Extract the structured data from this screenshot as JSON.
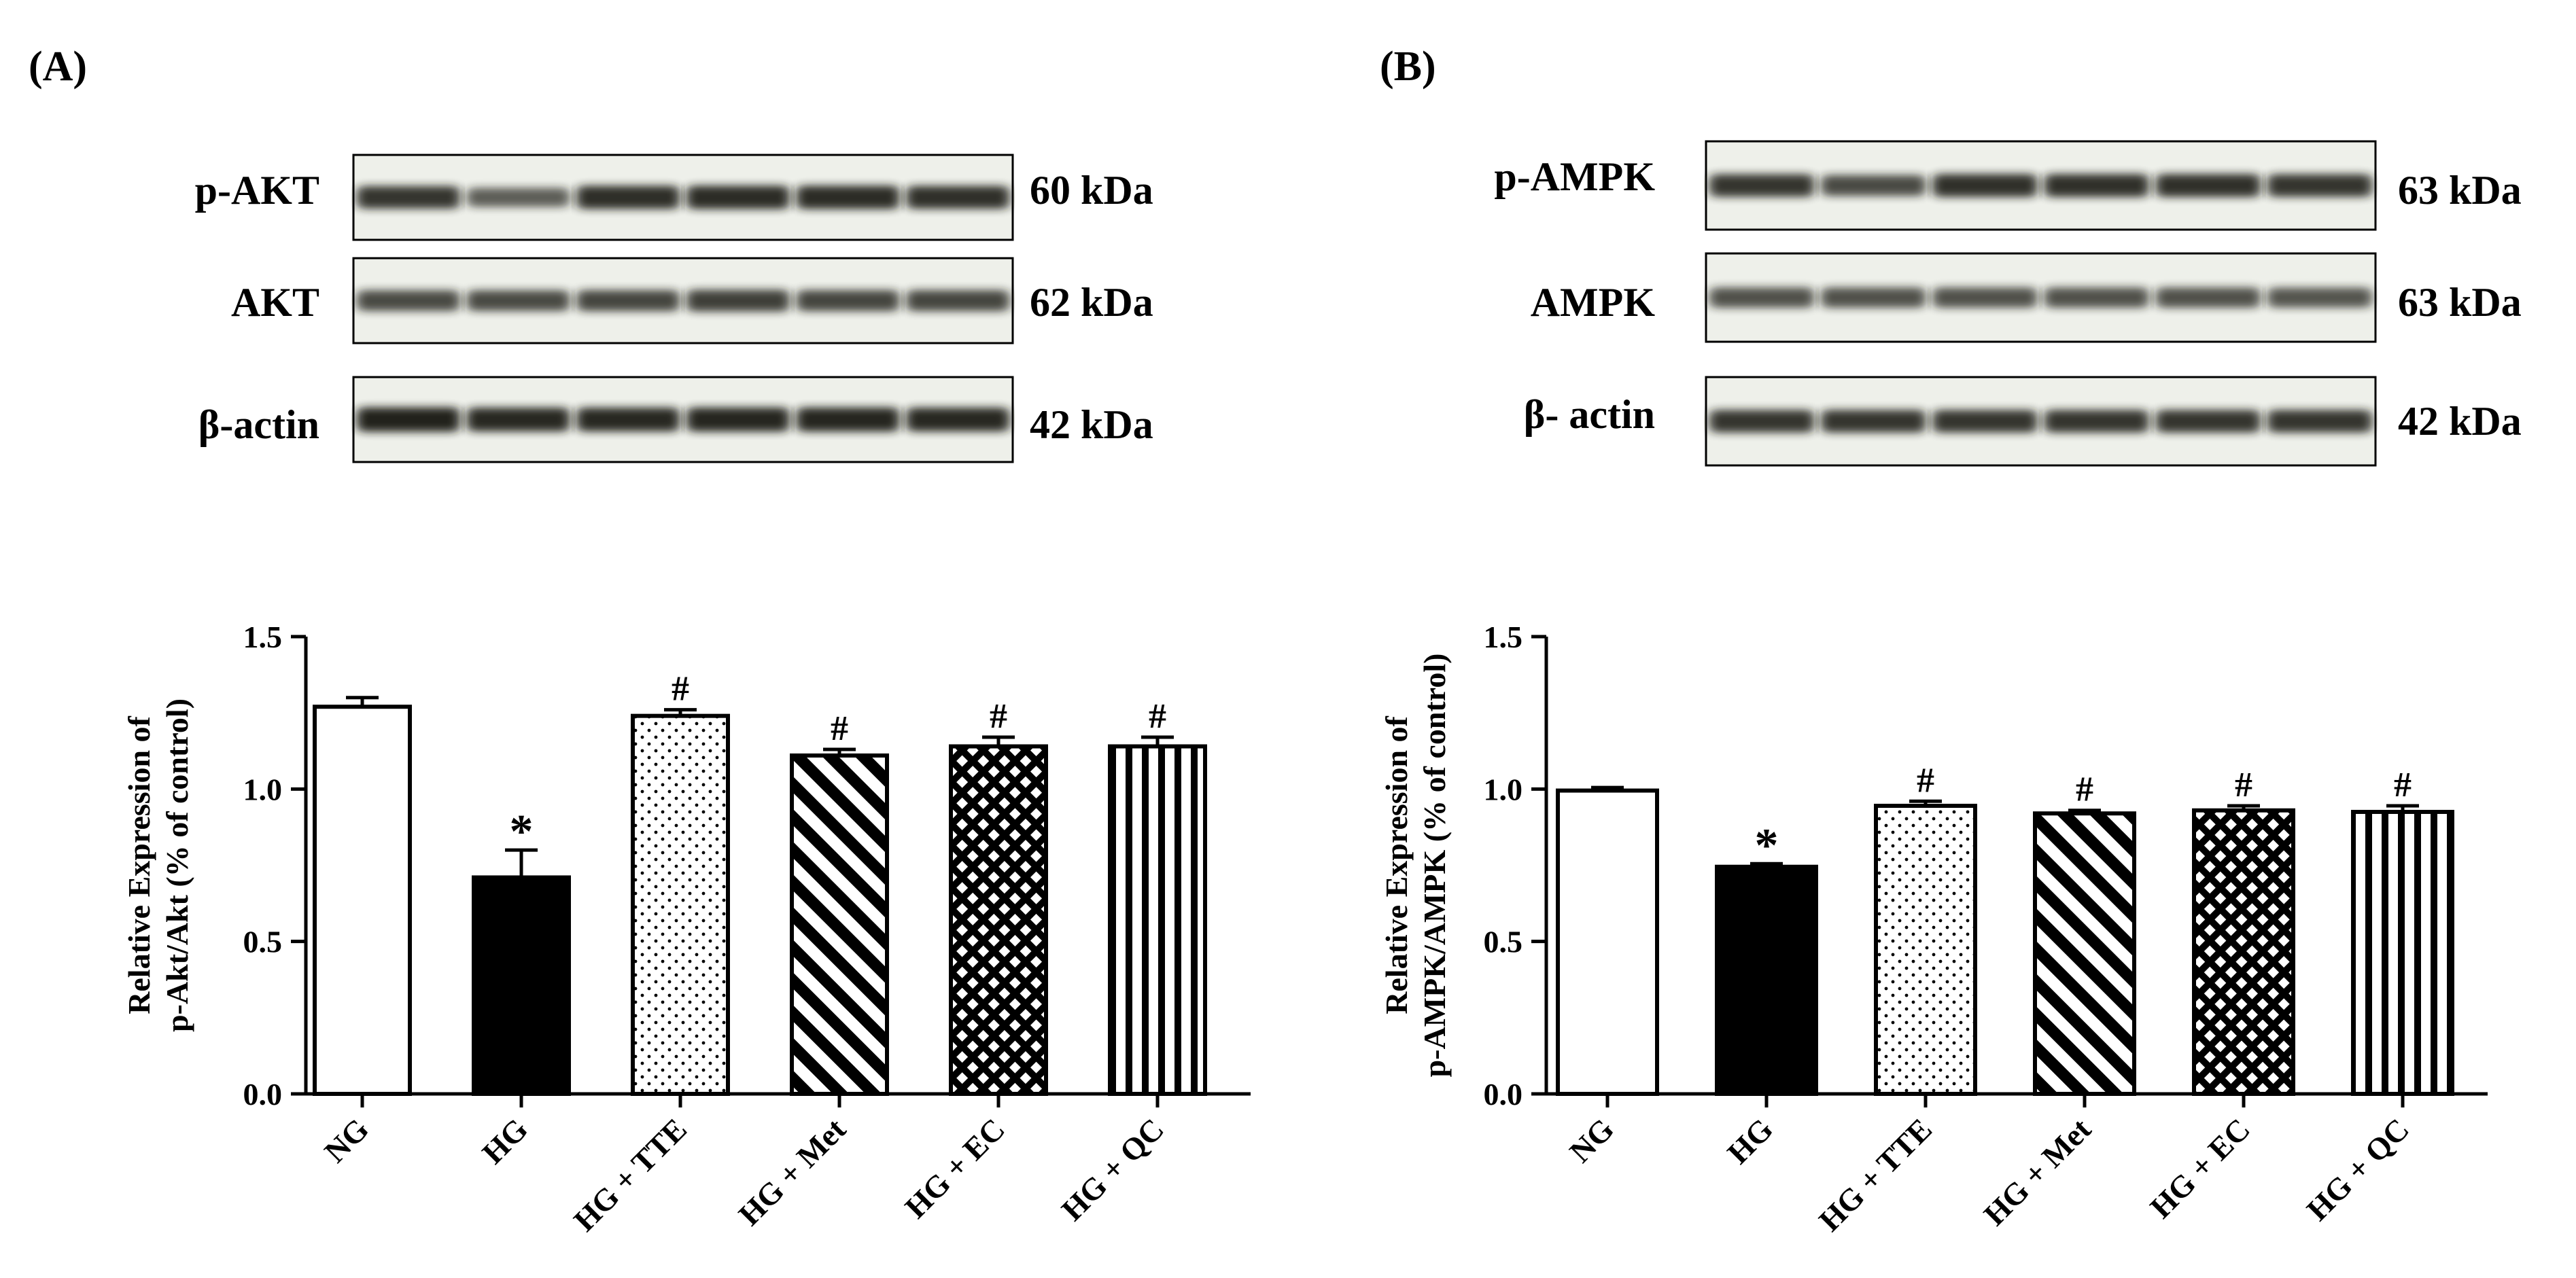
{
  "panels": [
    {
      "id": "A",
      "label": "(A)",
      "blot": {
        "rows": [
          {
            "protein": "p-AKT",
            "size": "60 kDa",
            "intensity": [
              0.85,
              0.55,
              0.9,
              0.92,
              0.92,
              0.88
            ]
          },
          {
            "protein": "AKT",
            "size": "62 kDa",
            "intensity": [
              0.7,
              0.7,
              0.72,
              0.78,
              0.72,
              0.72
            ]
          },
          {
            "protein": "β-actin",
            "size": "42 kDa",
            "intensity": [
              1.0,
              0.95,
              0.95,
              0.97,
              0.97,
              0.95
            ]
          }
        ]
      }
    },
    {
      "id": "B",
      "label": "(B)",
      "blot": {
        "rows": [
          {
            "protein": "p-AMPK",
            "size": "63 kDa",
            "intensity": [
              0.85,
              0.7,
              0.88,
              0.88,
              0.88,
              0.85
            ]
          },
          {
            "protein": "AMPK",
            "size": "63 kDa",
            "intensity": [
              0.65,
              0.65,
              0.65,
              0.65,
              0.65,
              0.62
            ]
          },
          {
            "protein": "β- actin",
            "size": "42 kDa",
            "intensity": [
              0.85,
              0.85,
              0.85,
              0.85,
              0.85,
              0.85
            ]
          }
        ]
      }
    }
  ],
  "chart_data": [
    {
      "type": "bar",
      "panel": "A",
      "categories": [
        "NG",
        "HG",
        "HG + TTE",
        "HG + Met",
        "HG + EC",
        "HG + QC"
      ],
      "values": [
        1.27,
        0.71,
        1.24,
        1.11,
        1.14,
        1.14
      ],
      "errors": [
        0.03,
        0.09,
        0.02,
        0.02,
        0.03,
        0.03
      ],
      "annotations": [
        "",
        "*",
        "#",
        "#",
        "#",
        "#"
      ],
      "patterns": [
        "white",
        "black",
        "dots",
        "diagonal",
        "crosshatch",
        "vertical"
      ],
      "ylabel_line1": "Relative Expression of",
      "ylabel_line2": "p-Akt/Akt (% of control)",
      "xlabel": "",
      "ylim": [
        0,
        1.5
      ],
      "yticks": [
        "0.0",
        "0.5",
        "1.0",
        "1.5"
      ]
    },
    {
      "type": "bar",
      "panel": "B",
      "categories": [
        "NG",
        "HG",
        "HG + TTE",
        "HG + Met",
        "HG + EC",
        "HG + QC"
      ],
      "values": [
        0.995,
        0.745,
        0.945,
        0.92,
        0.93,
        0.925
      ],
      "errors": [
        0.01,
        0.01,
        0.015,
        0.01,
        0.015,
        0.02
      ],
      "annotations": [
        "",
        "*",
        "#",
        "#",
        "#",
        "#"
      ],
      "patterns": [
        "white",
        "black",
        "dots",
        "diagonal",
        "crosshatch",
        "vertical"
      ],
      "ylabel_line1": "Relative Expression of",
      "ylabel_line2": "p-AMPK/AMPK (% of control)",
      "xlabel": "",
      "ylim": [
        0,
        1.5
      ],
      "yticks": [
        "0.0",
        "0.5",
        "1.0",
        "1.5"
      ]
    }
  ]
}
